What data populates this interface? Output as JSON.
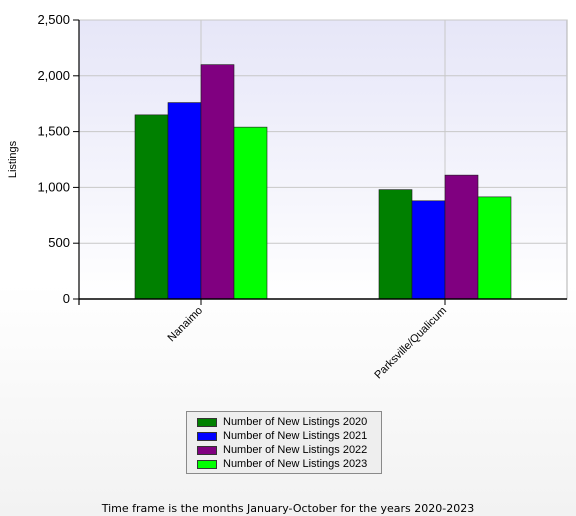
{
  "chart_data": {
    "type": "bar",
    "categories": [
      "Nanaimo",
      "Parksville/Qualicum"
    ],
    "series": [
      {
        "name": "Number of New Listings 2020",
        "color": "#008000",
        "values": [
          1650,
          980
        ]
      },
      {
        "name": "Number of New Listings 2021",
        "color": "#0000ff",
        "values": [
          1760,
          880
        ]
      },
      {
        "name": "Number of New Listings 2022",
        "color": "#800080",
        "values": [
          2100,
          1110
        ]
      },
      {
        "name": "Number of New Listings 2023",
        "color": "#00ff00",
        "values": [
          1540,
          915
        ]
      }
    ],
    "ylabel": "Listings",
    "ylim": [
      0,
      2500
    ],
    "yticks": [
      0,
      500,
      1000,
      1500,
      2000,
      2500
    ],
    "ytick_labels": [
      "0",
      "500",
      "1,000",
      "1,500",
      "2,000",
      "2,500"
    ],
    "grid": true,
    "legend_position": "bottom"
  },
  "footnote": "Time frame is the months January-October for the years 2020-2023"
}
